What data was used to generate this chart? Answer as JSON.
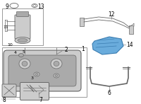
{
  "bg": "#ffffff",
  "lc": "#666666",
  "lc2": "#999999",
  "blue_fill": "#6aacdc",
  "blue_edge": "#3a7cb0",
  "gray_light": "#cccccc",
  "gray_mid": "#aaaaaa",
  "gray_dark": "#888888",
  "figsize": [
    2.0,
    1.47
  ],
  "dpi": 100
}
